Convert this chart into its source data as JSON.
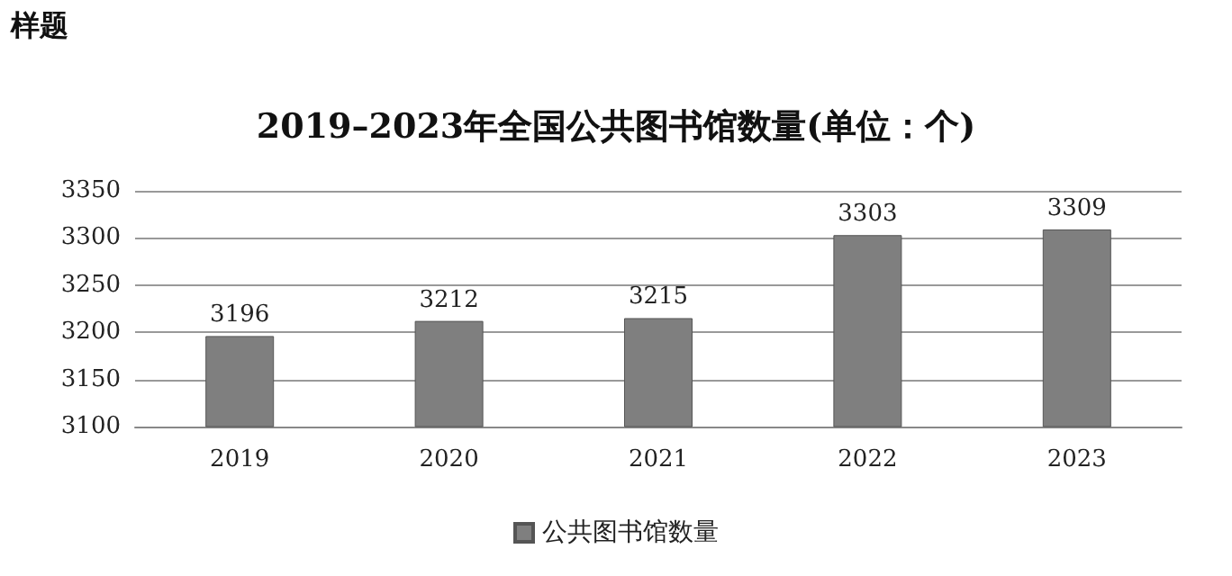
{
  "chart_data": {
    "type": "bar",
    "title": "2019–2023年全国公共图书馆数量(单位：个)",
    "annotations": [
      "样题"
    ],
    "categories": [
      "2019",
      "2020",
      "2021",
      "2022",
      "2023"
    ],
    "series": [
      {
        "name": "公共图书馆数量",
        "color": "#7f7f7f",
        "values": [
          3196,
          3212,
          3215,
          3303,
          3309
        ]
      }
    ],
    "ylim": [
      3100,
      3350
    ],
    "yticks": [
      3100,
      3150,
      3200,
      3250,
      3300,
      3350
    ],
    "grid": "y",
    "legend": "bottom",
    "data_labels": true
  }
}
